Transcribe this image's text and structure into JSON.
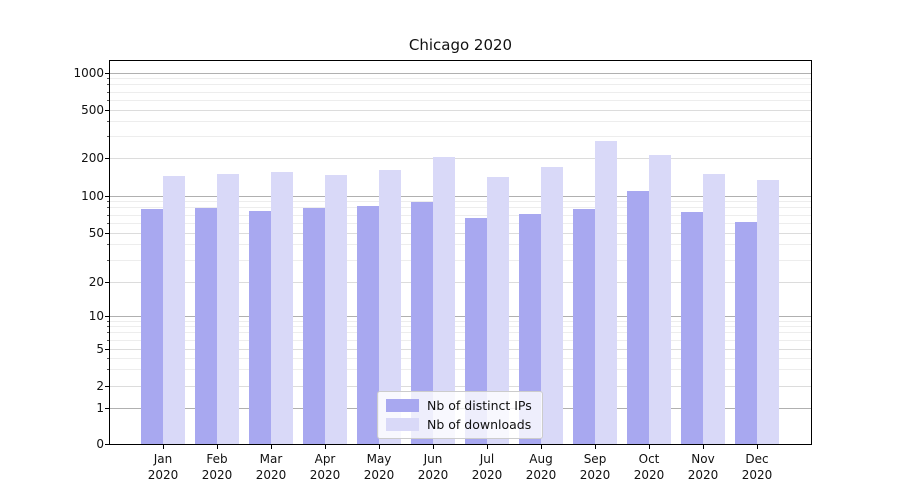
{
  "chart_data": {
    "type": "bar",
    "title": "Chicago 2020",
    "categories": [
      "Jan",
      "Feb",
      "Mar",
      "Apr",
      "May",
      "Jun",
      "Jul",
      "Aug",
      "Sep",
      "Oct",
      "Nov",
      "Dec"
    ],
    "x_tick_second_line": "2020",
    "series": [
      {
        "name": "Nb of distinct IPs",
        "color": "#a8a8f0",
        "values": [
          78,
          80,
          76,
          80,
          83,
          90,
          66,
          71,
          78,
          110,
          74,
          62
        ]
      },
      {
        "name": "Nb of downloads",
        "color": "#d9d9f8",
        "values": [
          145,
          150,
          156,
          147,
          160,
          202,
          142,
          170,
          275,
          212,
          150,
          133
        ]
      }
    ],
    "y_axis": {
      "scale": "symlog",
      "ticks": [
        0,
        1,
        2,
        5,
        10,
        20,
        50,
        100,
        200,
        500,
        1000
      ],
      "minor_ticks": [
        3,
        4,
        6,
        7,
        8,
        9,
        30,
        40,
        60,
        70,
        80,
        90,
        300,
        400,
        600,
        700,
        800,
        900
      ],
      "ylim": [
        0,
        1200
      ],
      "grid": true
    },
    "legend_position": "lower center"
  },
  "colors": {
    "bar_distinct_ips": "#a8a8f0",
    "bar_downloads": "#d9d9f8",
    "grid_decade": "#b0b0b0",
    "grid_major": "#dcdcdc",
    "grid_minor": "#ededed",
    "spine": "#000000"
  }
}
